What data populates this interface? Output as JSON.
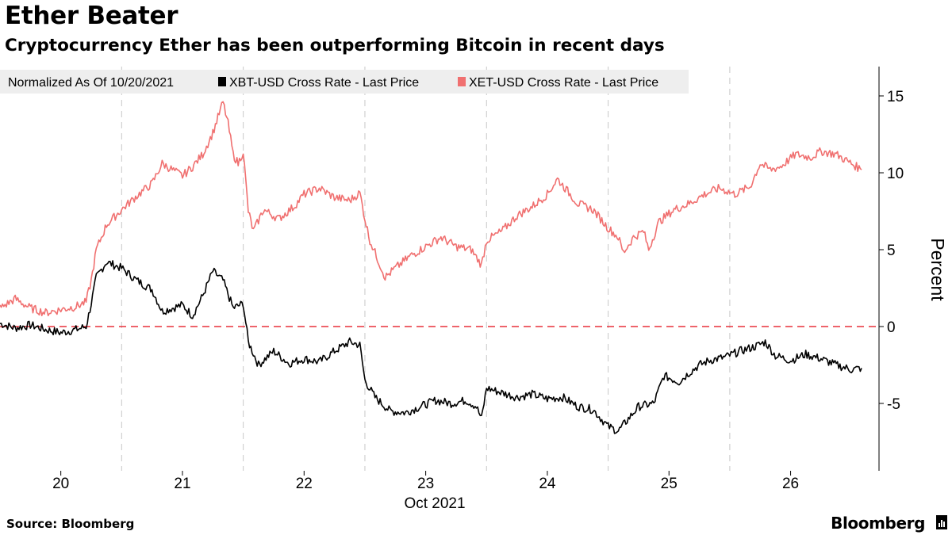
{
  "title": "Ether Beater",
  "subtitle": "Cryptocurrency Ether has been outperforming Bitcoin in recent days",
  "footer": {
    "source": "Source: Bloomberg",
    "brand": "Bloomberg"
  },
  "colors": {
    "xbt": "#000000",
    "xet": "#f07070",
    "zero_line": "#e8303a",
    "legend_bg": "#eeeeee",
    "grid": "#c8c8c8"
  },
  "chart_data": {
    "type": "line",
    "legend_title": "Normalized As Of 10/20/2021",
    "legend_position": "top-left",
    "xlabel": "Oct 2021",
    "ylabel": "Percent",
    "x_tick_labels": [
      "20",
      "21",
      "22",
      "23",
      "24",
      "25",
      "26"
    ],
    "x_range": [
      "2021-10-19 12:00",
      "2021-10-26 14:00"
    ],
    "ylim": [
      -8.5,
      17
    ],
    "y_ticks": [
      -5,
      0,
      5,
      10,
      15
    ],
    "y_tick_labels": [
      "-5",
      "0",
      "5",
      "10",
      "15"
    ],
    "reference_line": {
      "y": 0,
      "style": "dashed"
    },
    "grid": {
      "vertical": true,
      "horizontal": false
    },
    "series": [
      {
        "name": "XBT-USD Cross Rate - Last Price",
        "color": "#000000",
        "points": [
          [
            "2021-10-19 12:00",
            0.2
          ],
          [
            "2021-10-19 15:00",
            -0.1
          ],
          [
            "2021-10-19 18:00",
            0.1
          ],
          [
            "2021-10-19 21:00",
            -0.2
          ],
          [
            "2021-10-20 00:00",
            -0.4
          ],
          [
            "2021-10-20 03:00",
            -0.2
          ],
          [
            "2021-10-20 05:00",
            0.0
          ],
          [
            "2021-10-20 06:00",
            1.5
          ],
          [
            "2021-10-20 07:00",
            3.2
          ],
          [
            "2021-10-20 09:00",
            4.2
          ],
          [
            "2021-10-20 12:00",
            3.8
          ],
          [
            "2021-10-20 15:00",
            3.0
          ],
          [
            "2021-10-20 18:00",
            2.4
          ],
          [
            "2021-10-20 20:00",
            1.0
          ],
          [
            "2021-10-20 22:00",
            1.2
          ],
          [
            "2021-10-21 00:00",
            1.4
          ],
          [
            "2021-10-21 02:00",
            0.7
          ],
          [
            "2021-10-21 04:00",
            2.0
          ],
          [
            "2021-10-21 06:00",
            3.6
          ],
          [
            "2021-10-21 08:00",
            3.0
          ],
          [
            "2021-10-21 10:00",
            1.2
          ],
          [
            "2021-10-21 12:00",
            1.5
          ],
          [
            "2021-10-21 13:00",
            -1.0
          ],
          [
            "2021-10-21 15:00",
            -2.5
          ],
          [
            "2021-10-21 18:00",
            -1.6
          ],
          [
            "2021-10-21 21:00",
            -2.4
          ],
          [
            "2021-10-22 00:00",
            -2.1
          ],
          [
            "2021-10-22 03:00",
            -2.3
          ],
          [
            "2021-10-22 06:00",
            -1.6
          ],
          [
            "2021-10-22 09:00",
            -1.0
          ],
          [
            "2021-10-22 11:00",
            -1.2
          ],
          [
            "2021-10-22 12:00",
            -3.5
          ],
          [
            "2021-10-22 14:00",
            -4.6
          ],
          [
            "2021-10-22 17:00",
            -5.5
          ],
          [
            "2021-10-22 20:00",
            -5.6
          ],
          [
            "2021-10-22 23:00",
            -5.2
          ],
          [
            "2021-10-23 02:00",
            -4.8
          ],
          [
            "2021-10-23 05:00",
            -5.0
          ],
          [
            "2021-10-23 08:00",
            -4.8
          ],
          [
            "2021-10-23 10:00",
            -5.2
          ],
          [
            "2021-10-23 11:00",
            -6.0
          ],
          [
            "2021-10-23 12:00",
            -4.0
          ],
          [
            "2021-10-23 15:00",
            -4.3
          ],
          [
            "2021-10-23 18:00",
            -4.6
          ],
          [
            "2021-10-23 21:00",
            -4.4
          ],
          [
            "2021-10-24 00:00",
            -4.7
          ],
          [
            "2021-10-24 03:00",
            -4.6
          ],
          [
            "2021-10-24 06:00",
            -5.2
          ],
          [
            "2021-10-24 09:00",
            -5.4
          ],
          [
            "2021-10-24 12:00",
            -6.5
          ],
          [
            "2021-10-24 14:00",
            -6.8
          ],
          [
            "2021-10-24 16:00",
            -6.0
          ],
          [
            "2021-10-24 18:00",
            -5.2
          ],
          [
            "2021-10-24 21:00",
            -5.0
          ],
          [
            "2021-10-24 23:00",
            -3.2
          ],
          [
            "2021-10-25 02:00",
            -3.6
          ],
          [
            "2021-10-25 04:00",
            -3.0
          ],
          [
            "2021-10-25 06:00",
            -2.5
          ],
          [
            "2021-10-25 08:00",
            -2.2
          ],
          [
            "2021-10-25 11:00",
            -2.0
          ],
          [
            "2021-10-25 14:00",
            -1.6
          ],
          [
            "2021-10-25 17:00",
            -1.3
          ],
          [
            "2021-10-25 19:00",
            -1.0
          ],
          [
            "2021-10-25 21:00",
            -1.9
          ],
          [
            "2021-10-26 00:00",
            -2.2
          ],
          [
            "2021-10-26 03:00",
            -1.8
          ],
          [
            "2021-10-26 06:00",
            -2.1
          ],
          [
            "2021-10-26 09:00",
            -2.5
          ],
          [
            "2021-10-26 12:00",
            -2.8
          ],
          [
            "2021-10-26 14:00",
            -2.7
          ]
        ]
      },
      {
        "name": "XET-USD Cross Rate - Last Price",
        "color": "#f07070",
        "points": [
          [
            "2021-10-19 12:00",
            1.2
          ],
          [
            "2021-10-19 15:00",
            1.8
          ],
          [
            "2021-10-19 18:00",
            1.2
          ],
          [
            "2021-10-19 21:00",
            0.9
          ],
          [
            "2021-10-20 00:00",
            1.1
          ],
          [
            "2021-10-20 03:00",
            1.3
          ],
          [
            "2021-10-20 05:00",
            1.6
          ],
          [
            "2021-10-20 06:00",
            3.0
          ],
          [
            "2021-10-20 07:00",
            5.0
          ],
          [
            "2021-10-20 09:00",
            6.6
          ],
          [
            "2021-10-20 12:00",
            7.6
          ],
          [
            "2021-10-20 15:00",
            8.5
          ],
          [
            "2021-10-20 18:00",
            9.3
          ],
          [
            "2021-10-20 20:00",
            10.6
          ],
          [
            "2021-10-20 22:00",
            10.2
          ],
          [
            "2021-10-21 00:00",
            9.8
          ],
          [
            "2021-10-21 02:00",
            10.4
          ],
          [
            "2021-10-21 04:00",
            11.2
          ],
          [
            "2021-10-21 06:00",
            12.6
          ],
          [
            "2021-10-21 08:00",
            14.6
          ],
          [
            "2021-10-21 09:00",
            13.2
          ],
          [
            "2021-10-21 10:00",
            11.2
          ],
          [
            "2021-10-21 11:00",
            10.6
          ],
          [
            "2021-10-21 12:00",
            11.4
          ],
          [
            "2021-10-21 13:00",
            7.5
          ],
          [
            "2021-10-21 14:00",
            6.2
          ],
          [
            "2021-10-21 16:00",
            7.6
          ],
          [
            "2021-10-21 19:00",
            7.0
          ],
          [
            "2021-10-21 22:00",
            7.8
          ],
          [
            "2021-10-22 00:00",
            8.6
          ],
          [
            "2021-10-22 03:00",
            9.0
          ],
          [
            "2021-10-22 06:00",
            8.4
          ],
          [
            "2021-10-22 09:00",
            8.2
          ],
          [
            "2021-10-22 11:00",
            8.7
          ],
          [
            "2021-10-22 12:00",
            7.0
          ],
          [
            "2021-10-22 13:00",
            5.6
          ],
          [
            "2021-10-22 15:00",
            4.0
          ],
          [
            "2021-10-22 16:00",
            3.2
          ],
          [
            "2021-10-22 18:00",
            3.8
          ],
          [
            "2021-10-22 21:00",
            4.6
          ],
          [
            "2021-10-23 00:00",
            5.2
          ],
          [
            "2021-10-23 03:00",
            5.8
          ],
          [
            "2021-10-23 06:00",
            5.2
          ],
          [
            "2021-10-23 09:00",
            5.0
          ],
          [
            "2021-10-23 11:00",
            4.0
          ],
          [
            "2021-10-23 12:00",
            5.6
          ],
          [
            "2021-10-23 15:00",
            6.2
          ],
          [
            "2021-10-23 18:00",
            7.2
          ],
          [
            "2021-10-23 21:00",
            7.8
          ],
          [
            "2021-10-24 00:00",
            8.6
          ],
          [
            "2021-10-24 02:00",
            9.6
          ],
          [
            "2021-10-24 04:00",
            8.8
          ],
          [
            "2021-10-24 06:00",
            8.0
          ],
          [
            "2021-10-24 09:00",
            7.6
          ],
          [
            "2021-10-24 12:00",
            6.4
          ],
          [
            "2021-10-24 14:00",
            5.8
          ],
          [
            "2021-10-24 15:00",
            4.8
          ],
          [
            "2021-10-24 17:00",
            5.8
          ],
          [
            "2021-10-24 19:00",
            6.2
          ],
          [
            "2021-10-24 20:00",
            5.0
          ],
          [
            "2021-10-24 22:00",
            6.8
          ],
          [
            "2021-10-25 01:00",
            7.6
          ],
          [
            "2021-10-25 04:00",
            8.0
          ],
          [
            "2021-10-25 07:00",
            8.6
          ],
          [
            "2021-10-25 10:00",
            9.0
          ],
          [
            "2021-10-25 13:00",
            8.6
          ],
          [
            "2021-10-25 16:00",
            9.1
          ],
          [
            "2021-10-25 18:00",
            10.6
          ],
          [
            "2021-10-25 20:00",
            10.2
          ],
          [
            "2021-10-25 22:00",
            10.4
          ],
          [
            "2021-10-26 01:00",
            11.2
          ],
          [
            "2021-10-26 04:00",
            11.0
          ],
          [
            "2021-10-26 06:00",
            11.4
          ],
          [
            "2021-10-26 09:00",
            11.2
          ],
          [
            "2021-10-26 12:00",
            10.6
          ],
          [
            "2021-10-26 14:00",
            10.2
          ]
        ]
      }
    ]
  }
}
